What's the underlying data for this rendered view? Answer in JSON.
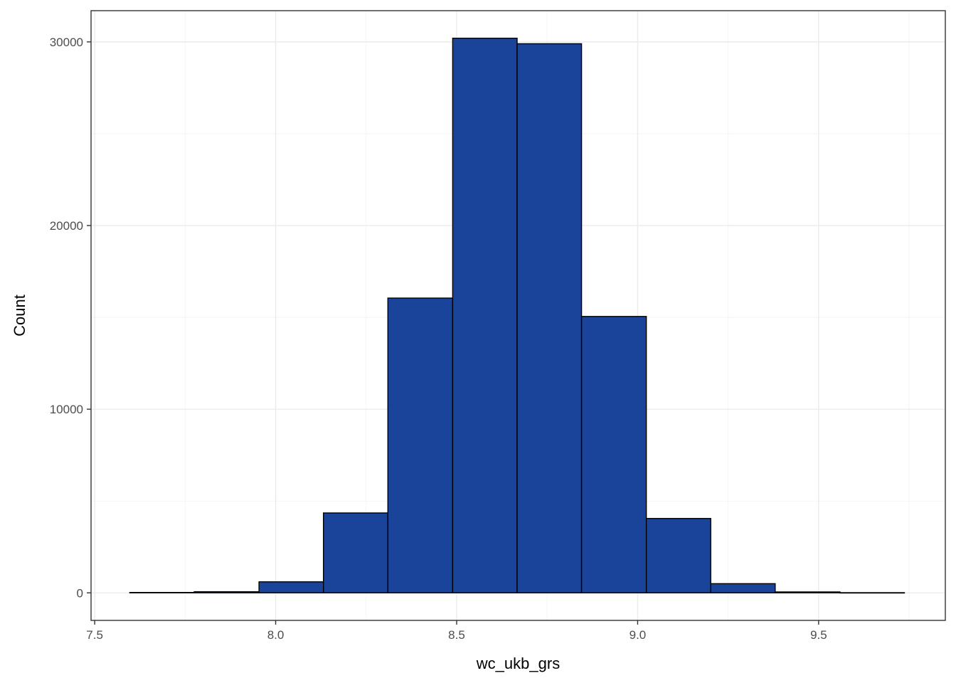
{
  "chart_data": {
    "type": "bar",
    "subtype": "histogram",
    "title": "",
    "xlabel": "wc_ukb_grs",
    "ylabel": "Count",
    "xlim": [
      7.49,
      9.85
    ],
    "ylim": [
      -1500,
      31700
    ],
    "x_ticks": [
      7.5,
      8.0,
      8.5,
      9.0,
      9.5
    ],
    "x_tick_labels": [
      "7.5",
      "8.0",
      "8.5",
      "9.0",
      "9.5"
    ],
    "y_ticks": [
      0,
      10000,
      20000,
      30000
    ],
    "y_tick_labels": [
      "0",
      "10000",
      "20000",
      "30000"
    ],
    "grid": true,
    "bar_color": "#1a4499",
    "edge_color": "#000000",
    "bins": [
      {
        "x0": 7.597,
        "x1": 7.775,
        "count": 20
      },
      {
        "x0": 7.775,
        "x1": 7.954,
        "count": 60
      },
      {
        "x0": 7.954,
        "x1": 8.132,
        "count": 600
      },
      {
        "x0": 8.132,
        "x1": 8.31,
        "count": 4350
      },
      {
        "x0": 8.31,
        "x1": 8.489,
        "count": 16050
      },
      {
        "x0": 8.489,
        "x1": 8.667,
        "count": 30200
      },
      {
        "x0": 8.667,
        "x1": 8.845,
        "count": 29900
      },
      {
        "x0": 8.845,
        "x1": 9.024,
        "count": 15050
      },
      {
        "x0": 9.024,
        "x1": 9.202,
        "count": 4050
      },
      {
        "x0": 9.202,
        "x1": 9.38,
        "count": 500
      },
      {
        "x0": 9.38,
        "x1": 9.559,
        "count": 50
      },
      {
        "x0": 9.559,
        "x1": 9.737,
        "count": 10
      }
    ]
  }
}
